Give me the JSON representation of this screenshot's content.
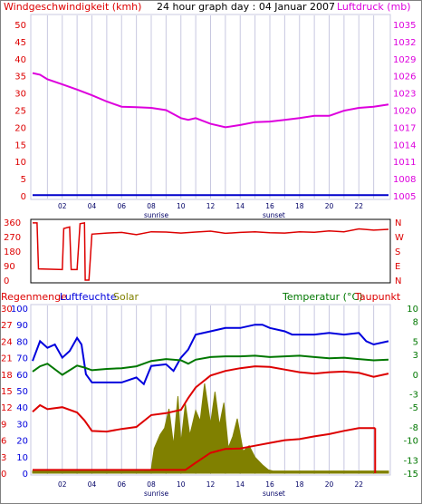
{
  "header": {
    "wind_label": "Windgeschwindigkeit (kmh)",
    "graph_title": "24 hour graph day : 04 Januar 2007",
    "pressure_label": "Luftdruck (mb)"
  },
  "footer_labels": {
    "sunrise": "sunrise",
    "sunset": "sunset"
  },
  "middle_labels": {
    "degrees": [
      "360",
      "270",
      "180",
      "90",
      "0"
    ],
    "compass": [
      "N",
      "W",
      "S",
      "E",
      "N"
    ]
  },
  "bottom_header": {
    "rain_label": "Regenmenge",
    "humidity_label": "Luftfeuchte",
    "solar_label": "Solar",
    "temp_label": "Temperatur (°C)",
    "dew_label": "Taupunkt"
  },
  "colors": {
    "wind": "#0000cc",
    "pressure": "#dd00dd",
    "direction": "#dd0000",
    "humidity": "#0000dd",
    "temperature": "#007700",
    "dewpoint": "#dd0000",
    "rain": "#dd0000",
    "solar": "#808000",
    "grid": "#c8c8e0"
  },
  "chart_data": [
    {
      "type": "line",
      "title": "24 hour graph day : 04 Januar 2007",
      "xlabel": "",
      "x_ticks": [
        "02",
        "04",
        "06",
        "08",
        "10",
        "12",
        "14",
        "16",
        "18",
        "20",
        "22"
      ],
      "xlim": [
        0,
        24
      ],
      "y_left": {
        "label": "Windgeschwindigkeit (kmh)",
        "ticks": [
          0,
          5,
          10,
          15,
          20,
          25,
          30,
          35,
          40,
          45,
          50
        ],
        "lim": [
          0,
          50
        ]
      },
      "y_right": {
        "label": "Luftdruck (mb)",
        "ticks": [
          1005,
          1008,
          1011,
          1014,
          1017,
          1020,
          1023,
          1026,
          1029,
          1032,
          1035
        ],
        "lim": [
          1005,
          1035
        ]
      },
      "series": [
        {
          "name": "Windgeschwindigkeit (kmh)",
          "axis": "left",
          "x": [
            0,
            24
          ],
          "values": [
            0.2,
            0.2
          ]
        },
        {
          "name": "Luftdruck (mb)",
          "axis": "right",
          "x": [
            0,
            0.5,
            1,
            2,
            3,
            4,
            5,
            6,
            7,
            8,
            9,
            10,
            10.5,
            11,
            12,
            13,
            14,
            15,
            16,
            17,
            18,
            19,
            20,
            21,
            22,
            23,
            24
          ],
          "values": [
            1026.5,
            1026.2,
            1025.4,
            1024.5,
            1023.6,
            1022.6,
            1021.5,
            1020.6,
            1020.5,
            1020.4,
            1020.0,
            1018.6,
            1018.3,
            1018.6,
            1017.6,
            1017.0,
            1017.4,
            1017.9,
            1018.0,
            1018.3,
            1018.6,
            1019.0,
            1019.0,
            1019.9,
            1020.4,
            1020.6,
            1021.0
          ]
        }
      ]
    },
    {
      "type": "line",
      "title": "",
      "xlim": [
        0,
        24
      ],
      "y_left": {
        "ticks": [
          0,
          90,
          180,
          270,
          360
        ],
        "lim": [
          0,
          360
        ]
      },
      "y_right": {
        "ticks": [
          "N",
          "E",
          "S",
          "W",
          "N"
        ]
      },
      "series": [
        {
          "name": "",
          "x": [
            0,
            0.3,
            0.4,
            2.0,
            2.1,
            2.5,
            2.6,
            3.0,
            3.2,
            3.5,
            3.55,
            3.8,
            4,
            5,
            6,
            7,
            8,
            9,
            10,
            11,
            12,
            13,
            14,
            15,
            16,
            17,
            18,
            19,
            20,
            21,
            22,
            23,
            24
          ],
          "values": [
            355,
            355,
            70,
            65,
            320,
            330,
            65,
            65,
            350,
            355,
            0,
            0,
            285,
            292,
            296,
            282,
            300,
            298,
            292,
            298,
            304,
            290,
            296,
            300,
            294,
            292,
            300,
            297,
            305,
            300,
            318,
            310,
            315
          ]
        }
      ]
    },
    {
      "type": "line",
      "title": "",
      "x_ticks": [
        "02",
        "04",
        "06",
        "08",
        "10",
        "12",
        "14",
        "16",
        "18",
        "20",
        "22"
      ],
      "xlim": [
        0,
        24
      ],
      "y_left": {
        "ticks": [
          0,
          10,
          20,
          30,
          40,
          50,
          60,
          70,
          80,
          90,
          100
        ],
        "lim": [
          0,
          100
        ],
        "secondary_ticks": [
          0,
          3,
          6,
          9,
          12,
          15,
          18,
          21,
          24,
          27,
          30
        ]
      },
      "y_right": {
        "ticks": [
          -15,
          -13,
          -10,
          -8,
          -5,
          -3,
          0,
          3,
          5,
          8,
          10
        ],
        "lim": [
          -15,
          10
        ]
      },
      "series": [
        {
          "name": "Luftfeuchte",
          "axis": "left_pct",
          "x": [
            0,
            0.5,
            1,
            1.5,
            2,
            2.5,
            3,
            3.3,
            3.6,
            4,
            5,
            6,
            7,
            7.5,
            8,
            9,
            9.5,
            10,
            10.5,
            11,
            12,
            13,
            14,
            15,
            15.5,
            16,
            17,
            17.5,
            18,
            19,
            20,
            21,
            22,
            22.5,
            23,
            24
          ],
          "values": [
            68,
            80,
            76,
            78,
            70,
            74,
            82,
            78,
            60,
            55,
            55,
            55,
            58,
            54,
            65,
            66,
            62,
            70,
            75,
            84,
            86,
            88,
            88,
            90,
            90,
            88,
            86,
            84,
            84,
            84,
            85,
            84,
            85,
            80,
            78,
            80
          ]
        },
        {
          "name": "Temperatur (°C)",
          "axis": "right",
          "x": [
            0,
            0.5,
            1,
            2,
            3,
            3.5,
            4,
            5,
            6,
            7,
            8,
            9,
            10,
            10.5,
            11,
            12,
            13,
            14,
            15,
            16,
            17,
            18,
            19,
            20,
            21,
            22,
            23,
            24
          ],
          "values": [
            0.4,
            1.2,
            1.6,
            -0.1,
            1.3,
            1.0,
            0.6,
            0.8,
            0.9,
            1.2,
            2.0,
            2.3,
            2.1,
            1.6,
            2.2,
            2.6,
            2.7,
            2.7,
            2.8,
            2.6,
            2.7,
            2.8,
            2.6,
            2.4,
            2.5,
            2.3,
            2.1,
            2.2
          ]
        },
        {
          "name": "Taupunkt",
          "axis": "right",
          "x": [
            0,
            0.5,
            1,
            2,
            3,
            3.5,
            4,
            5,
            6,
            7,
            8,
            9,
            10,
            10.5,
            11,
            12,
            13,
            14,
            15,
            16,
            17,
            18,
            19,
            20,
            21,
            22,
            23,
            24
          ],
          "values": [
            -5.7,
            -4.7,
            -5.3,
            -5.0,
            -5.8,
            -7.0,
            -8.6,
            -8.7,
            -8.3,
            -8.0,
            -6.2,
            -5.9,
            -5.4,
            -3.6,
            -2.0,
            -0.2,
            0.5,
            0.9,
            1.2,
            1.1,
            0.7,
            0.3,
            0.1,
            0.3,
            0.4,
            0.2,
            -0.4,
            0.1
          ]
        },
        {
          "name": "Regenmenge",
          "axis": "left_rain",
          "x": [
            0,
            10.3,
            11,
            12,
            13,
            14,
            15,
            16,
            17,
            18,
            19,
            20,
            21,
            22,
            23.1
          ],
          "values": [
            0.6,
            0.6,
            1.9,
            3.7,
            4.4,
            4.5,
            5.0,
            5.5,
            6.0,
            6.2,
            6.7,
            7.1,
            7.7,
            8.2,
            8.2
          ]
        },
        {
          "name": "Solar",
          "axis": "left_rain",
          "type": "area",
          "x": [
            0,
            7.5,
            8.0,
            8.2,
            8.6,
            8.9,
            9.2,
            9.5,
            9.8,
            10.0,
            10.3,
            10.6,
            11.0,
            11.3,
            11.6,
            12.0,
            12.3,
            12.6,
            12.9,
            13.2,
            13.5,
            13.8,
            14.2,
            14.6,
            15.0,
            15.5,
            15.9,
            16.2,
            24
          ],
          "values": [
            0.4,
            0.4,
            0.7,
            4.5,
            7.0,
            8.2,
            11.7,
            5.1,
            14.0,
            5.5,
            12.6,
            6.9,
            11.4,
            9.5,
            16.3,
            9.0,
            14.8,
            8.7,
            12.8,
            4.6,
            6.7,
            9.9,
            4.0,
            5.0,
            2.9,
            1.5,
            0.6,
            0.4,
            0.4
          ]
        }
      ]
    }
  ]
}
